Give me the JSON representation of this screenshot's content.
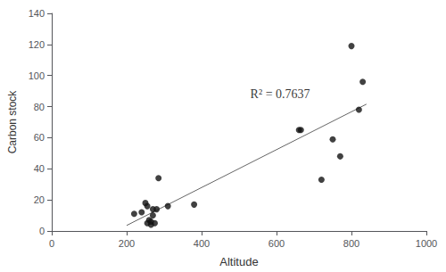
{
  "chart_data": {
    "type": "scatter",
    "xlabel": "Altitude",
    "ylabel": "Carbon stock",
    "series": [
      {
        "type": "line",
        "color": "#666666",
        "x": [
          200,
          840
        ],
        "values": [
          3.577,
          81.581
        ]
      },
      {
        "type": "scatter",
        "color": "#111111",
        "x": [
          220,
          240,
          250,
          255,
          255,
          260,
          265,
          265,
          270,
          270,
          275,
          280,
          285,
          310,
          380,
          660,
          665,
          720,
          750,
          770,
          800,
          820,
          830
        ],
        "values": [
          11,
          12,
          18,
          16,
          5,
          7,
          4,
          6,
          10,
          14,
          5,
          14,
          34,
          16,
          17,
          65,
          65,
          33,
          59,
          48,
          119,
          78,
          96
        ]
      }
    ],
    "annotations": [
      {
        "text": "R² = 0.7637",
        "x": 530,
        "y": 88
      }
    ],
    "xlim": [
      0,
      1000
    ],
    "ylim": [
      0,
      140
    ],
    "xticks": [
      0,
      200,
      400,
      600,
      800,
      1000
    ],
    "yticks": [
      0,
      20,
      40,
      60,
      80,
      100,
      120,
      140
    ],
    "grid": false
  }
}
